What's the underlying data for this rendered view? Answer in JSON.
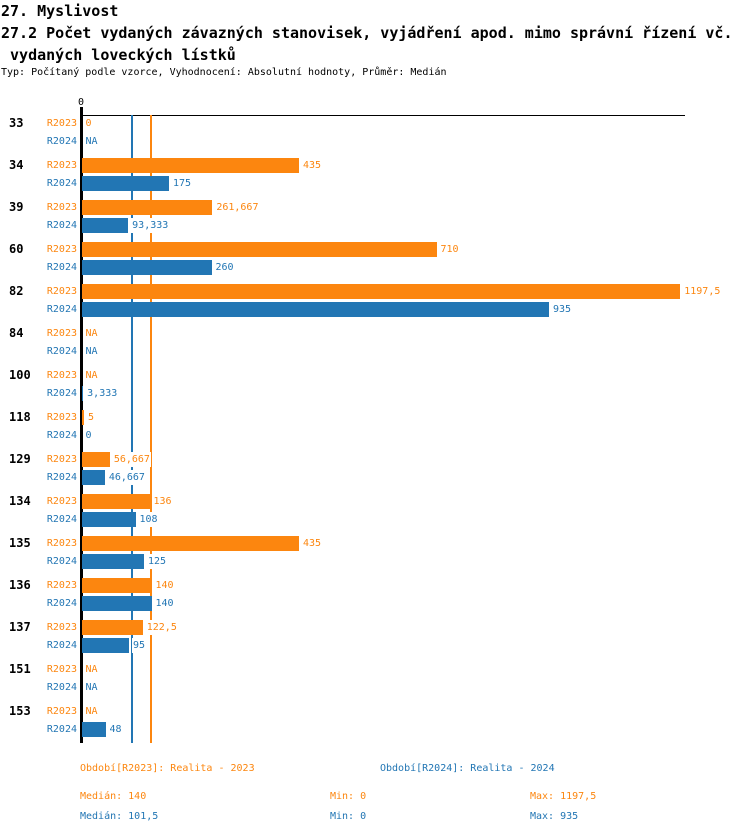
{
  "header": {
    "title": "27. Myslivost",
    "subtitle": "27.2 Počet vydaných závazných stanovisek, vyjádření apod. mimo správní řízení vč.",
    "subtitle2": " vydaných loveckých lístků",
    "meta": "Typ: Počítaný podle vzorce, Vyhodnocení: Absolutní hodnoty, Průměr: Medián"
  },
  "chart_data": {
    "type": "bar",
    "orientation": "horizontal",
    "title": "27.2 Počet vydaných závazných stanovisek, vyjádření apod. mimo správní řízení vč. vydaných loveckých lístků",
    "categories": [
      "33",
      "34",
      "39",
      "60",
      "82",
      "84",
      "100",
      "118",
      "129",
      "134",
      "135",
      "136",
      "137",
      "151",
      "153"
    ],
    "series": [
      {
        "name": "R2023",
        "legend": "Období[R2023]: Realita - 2023",
        "color": "#fc860f",
        "values": [
          0,
          435,
          261.667,
          710,
          1197.5,
          null,
          null,
          5,
          56.667,
          136,
          435,
          140,
          122.5,
          null,
          null
        ],
        "labels": [
          "0",
          "435",
          "261,667",
          "710",
          "1197,5",
          "NA",
          "NA",
          "5",
          "56,667",
          "136",
          "435",
          "140",
          "122,5",
          "NA",
          "NA"
        ],
        "median": 140,
        "min": 0,
        "max": 1197.5
      },
      {
        "name": "R2024",
        "legend": "Období[R2024]: Realita - 2024",
        "color": "#2276b4",
        "values": [
          null,
          175,
          93.333,
          260,
          935,
          null,
          3.333,
          0,
          46.667,
          108,
          125,
          140,
          95,
          null,
          48
        ],
        "labels": [
          "NA",
          "175",
          "93,333",
          "260",
          "935",
          "NA",
          "3,333",
          "0",
          "46,667",
          "108",
          "125",
          "140",
          "95",
          "NA",
          "48"
        ],
        "median": 101.5,
        "min": 0,
        "max": 935
      }
    ],
    "x_axis": {
      "tick_labels": [
        "0"
      ],
      "range": [
        0,
        1208
      ],
      "grid": false
    },
    "median_rule_lines": true,
    "legend_position": "bottom"
  },
  "stats": {
    "r2023": {
      "median": "Medián: 140",
      "min": "Min: 0",
      "max": "Max: 1197,5"
    },
    "r2024": {
      "median": "Medián: 101,5",
      "min": "Min: 0",
      "max": "Max: 935"
    }
  }
}
